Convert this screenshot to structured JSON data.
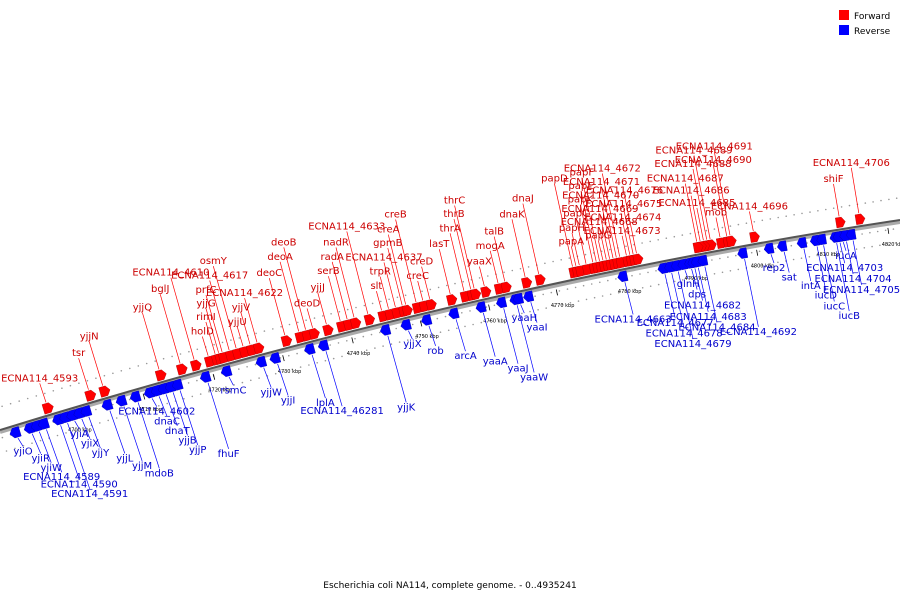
{
  "legend": {
    "items": [
      {
        "label": "Forward",
        "color": "#ff0000"
      },
      {
        "label": "Reverse",
        "color": "#0000ff"
      }
    ]
  },
  "caption": "Escherichia coli NA114, complete genome. - 0..4935241",
  "axis": {
    "start": 4690,
    "end": 4822,
    "step": 10,
    "unit": "kbp",
    "ticks": [
      "4700 kbp",
      "4710 kbp",
      "4720 kbp",
      "4730 kbp",
      "4740 kbp",
      "4750 kbp",
      "4760 kbp",
      "4770 kbp",
      "4780 kbp",
      "4790 kbp",
      "4800 kbp",
      "4810 kbp",
      "4820 kbp"
    ]
  },
  "forward_labels": [
    {
      "text": "ECNA114_4593",
      "kbp": 4697
    },
    {
      "text": "tsr",
      "kbp": 4703
    },
    {
      "text": "yjjN",
      "kbp": 4705
    },
    {
      "text": "yjjQ",
      "kbp": 4713
    },
    {
      "text": "bglJ",
      "kbp": 4716
    },
    {
      "text": "ECNA114_4610",
      "kbp": 4718
    },
    {
      "text": "holD",
      "kbp": 4720
    },
    {
      "text": "rimI",
      "kbp": 4721
    },
    {
      "text": "yjjG",
      "kbp": 4721.5
    },
    {
      "text": "prfC",
      "kbp": 4722
    },
    {
      "text": "ECNA114_4617",
      "kbp": 4723
    },
    {
      "text": "osmY",
      "kbp": 4724
    },
    {
      "text": "yjjU",
      "kbp": 4725
    },
    {
      "text": "yjjV",
      "kbp": 4726
    },
    {
      "text": "ECNA114_4622",
      "kbp": 4727
    },
    {
      "text": "deoC",
      "kbp": 4731
    },
    {
      "text": "deoA",
      "kbp": 4733
    },
    {
      "text": "deoB",
      "kbp": 4734
    },
    {
      "text": "deoD",
      "kbp": 4735
    },
    {
      "text": "yjjJ",
      "kbp": 4737
    },
    {
      "text": "serB",
      "kbp": 4739
    },
    {
      "text": "radA",
      "kbp": 4740
    },
    {
      "text": "nadR",
      "kbp": 4741
    },
    {
      "text": "ECNA114_4633",
      "kbp": 4743
    },
    {
      "text": "slt",
      "kbp": 4745
    },
    {
      "text": "trpR",
      "kbp": 4746
    },
    {
      "text": "ECNA114_4637",
      "kbp": 4747
    },
    {
      "text": "gpmB",
      "kbp": 4748
    },
    {
      "text": "creA",
      "kbp": 4748.5
    },
    {
      "text": "creB",
      "kbp": 4750
    },
    {
      "text": "creC",
      "kbp": 4751
    },
    {
      "text": "creD",
      "kbp": 4752
    },
    {
      "text": "lasT",
      "kbp": 4755
    },
    {
      "text": "thrA",
      "kbp": 4757
    },
    {
      "text": "thrB",
      "kbp": 4758
    },
    {
      "text": "thrC",
      "kbp": 4758.5
    },
    {
      "text": "yaaX",
      "kbp": 4760
    },
    {
      "text": "mogA",
      "kbp": 4762
    },
    {
      "text": "talB",
      "kbp": 4763
    },
    {
      "text": "dnaK",
      "kbp": 4766
    },
    {
      "text": "dnaJ",
      "kbp": 4768
    },
    {
      "text": "papD",
      "kbp": 4773
    },
    {
      "text": "papA",
      "kbp": 4773.5
    },
    {
      "text": "papH",
      "kbp": 4774
    },
    {
      "text": "papC",
      "kbp": 4775
    },
    {
      "text": "papK",
      "kbp": 4776
    },
    {
      "text": "papE",
      "kbp": 4776.5
    },
    {
      "text": "papF",
      "kbp": 4777
    },
    {
      "text": "papG",
      "kbp": 4777.5
    },
    {
      "text": "ECNA114_4668",
      "kbp": 4778
    },
    {
      "text": "ECNA114_4669",
      "kbp": 4778.5
    },
    {
      "text": "ECNA114_4670",
      "kbp": 4779
    },
    {
      "text": "ECNA114_4671",
      "kbp": 4779.5
    },
    {
      "text": "ECNA114_4672",
      "kbp": 4780
    },
    {
      "text": "ECNA114_4673",
      "kbp": 4781
    },
    {
      "text": "ECNA114_4674",
      "kbp": 4781.5
    },
    {
      "text": "ECNA114_4675",
      "kbp": 4782
    },
    {
      "text": "ECNA114_4676",
      "kbp": 4782.5
    },
    {
      "text": "ECNA114_4688",
      "kbp": 4793
    },
    {
      "text": "ECNA114_4689",
      "kbp": 4793.5
    },
    {
      "text": "mob",
      "kbp": 4795
    },
    {
      "text": "ECNA114_4685",
      "kbp": 4792.5
    },
    {
      "text": "ECNA114_4686",
      "kbp": 4792
    },
    {
      "text": "ECNA114_4687",
      "kbp": 4791.5
    },
    {
      "text": "ECNA114_4690",
      "kbp": 4796
    },
    {
      "text": "ECNA114_4691",
      "kbp": 4796.5
    },
    {
      "text": "ECNA114_4696",
      "kbp": 4800
    },
    {
      "text": "shiF",
      "kbp": 4813
    },
    {
      "text": "ECNA114_4706",
      "kbp": 4816
    }
  ],
  "reverse_labels": [
    {
      "text": "yjiO",
      "kbp": 4692
    },
    {
      "text": "yjiR",
      "kbp": 4694
    },
    {
      "text": "yjiW",
      "kbp": 4695
    },
    {
      "text": "ECNA114_4589",
      "kbp": 4696
    },
    {
      "text": "ECNA114_4590",
      "kbp": 4698
    },
    {
      "text": "ECNA114_4591",
      "kbp": 4699
    },
    {
      "text": "yjiA",
      "kbp": 4700
    },
    {
      "text": "yjiX",
      "kbp": 4701
    },
    {
      "text": "yjjY",
      "kbp": 4702
    },
    {
      "text": "yjjL",
      "kbp": 4705
    },
    {
      "text": "yjjM",
      "kbp": 4707
    },
    {
      "text": "mdoB",
      "kbp": 4709
    },
    {
      "text": "ECNA114_4602",
      "kbp": 4711
    },
    {
      "text": "dnaC",
      "kbp": 4712
    },
    {
      "text": "dnaT",
      "kbp": 4713
    },
    {
      "text": "yjjB",
      "kbp": 4714
    },
    {
      "text": "yjjP",
      "kbp": 4715
    },
    {
      "text": "fhuF",
      "kbp": 4719
    },
    {
      "text": "rsmC",
      "kbp": 4722
    },
    {
      "text": "yjjW",
      "kbp": 4727
    },
    {
      "text": "yjjI",
      "kbp": 4729
    },
    {
      "text": "lplA",
      "kbp": 4734
    },
    {
      "text": "ECNA114_46281",
      "kbp": 4736
    },
    {
      "text": "yjjK",
      "kbp": 4745
    },
    {
      "text": "yjjX",
      "kbp": 4748
    },
    {
      "text": "rob",
      "kbp": 4751
    },
    {
      "text": "arcA",
      "kbp": 4755
    },
    {
      "text": "yaaA",
      "kbp": 4759
    },
    {
      "text": "yaaJ",
      "kbp": 4762
    },
    {
      "text": "yaaW",
      "kbp": 4764
    },
    {
      "text": "yaaH",
      "kbp": 4764.5
    },
    {
      "text": "yaaI",
      "kbp": 4766
    },
    {
      "text": "ECNA114_4663",
      "kbp": 4780
    },
    {
      "text": "ECNA114_4677",
      "kbp": 4786
    },
    {
      "text": "ECNA114_4678",
      "kbp": 4787
    },
    {
      "text": "ECNA114_4679",
      "kbp": 4788
    },
    {
      "text": "glnH",
      "kbp": 4789
    },
    {
      "text": "dps",
      "kbp": 4790
    },
    {
      "text": "ECNA114_4682",
      "kbp": 4790.5
    },
    {
      "text": "ECNA114_4683",
      "kbp": 4791
    },
    {
      "text": "ECNA114_4684",
      "kbp": 4792
    },
    {
      "text": "ECNA114_4692",
      "kbp": 4798
    },
    {
      "text": "rep2",
      "kbp": 4802
    },
    {
      "text": "sat",
      "kbp": 4804
    },
    {
      "text": "intA",
      "kbp": 4807
    },
    {
      "text": "iucD",
      "kbp": 4809
    },
    {
      "text": "iucC",
      "kbp": 4810
    },
    {
      "text": "iucB",
      "kbp": 4812
    },
    {
      "text": "iucA",
      "kbp": 4813
    },
    {
      "text": "ECNA114_4703",
      "kbp": 4812.5
    },
    {
      "text": "ECNA114_4704",
      "kbp": 4813.5
    },
    {
      "text": "ECNA114_4705",
      "kbp": 4814.5
    }
  ]
}
